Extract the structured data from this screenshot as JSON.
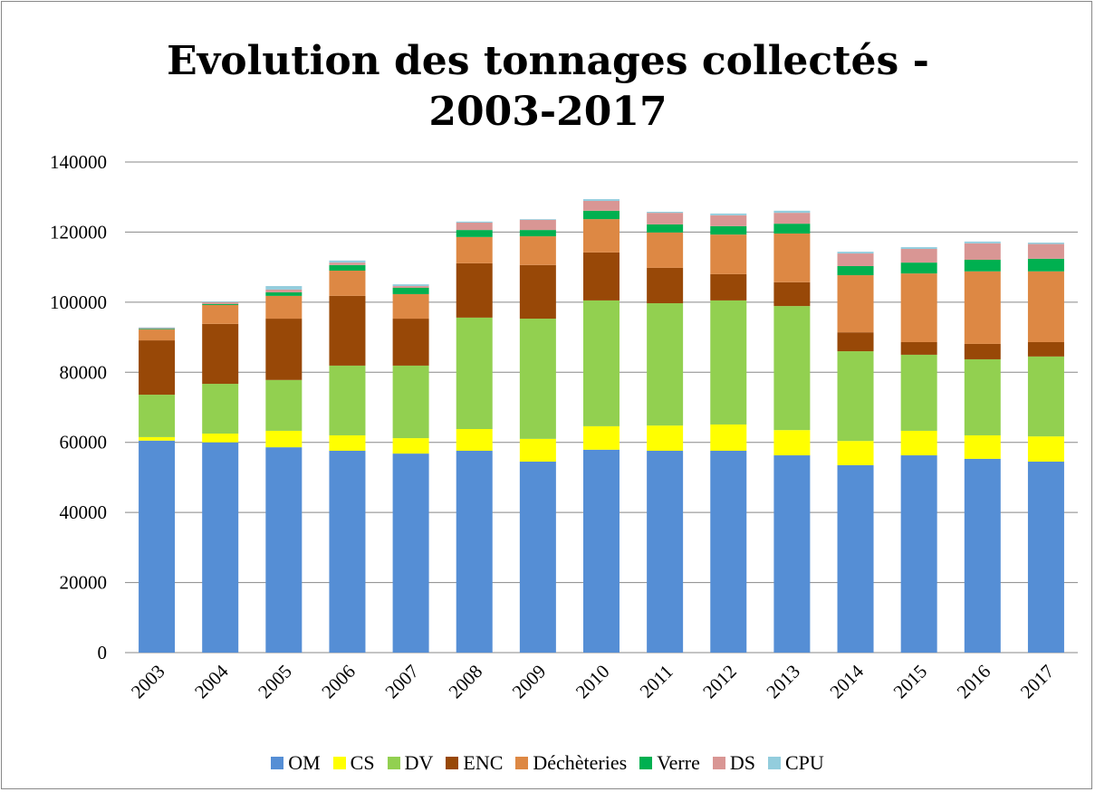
{
  "chart_data": {
    "type": "stacked_bar",
    "title": "Evolution des tonnages collectés - 2003-2017",
    "categories": [
      "2003",
      "2004",
      "2005",
      "2006",
      "2007",
      "2008",
      "2009",
      "2010",
      "2011",
      "2012",
      "2013",
      "2014",
      "2015",
      "2016",
      "2017"
    ],
    "series": [
      {
        "name": "OM",
        "color": "#558ed5",
        "values": [
          60500,
          60000,
          58600,
          57600,
          56800,
          57600,
          54500,
          57900,
          57600,
          57600,
          56300,
          53500,
          56300,
          55300,
          54500
        ]
      },
      {
        "name": "CS",
        "color": "#ffff00",
        "values": [
          1000,
          2500,
          4700,
          4400,
          4400,
          6200,
          6500,
          6700,
          7200,
          7500,
          7200,
          6900,
          7000,
          6700,
          7200
        ]
      },
      {
        "name": "DV",
        "color": "#92d050",
        "values": [
          12100,
          14200,
          14500,
          19900,
          20700,
          31800,
          34300,
          35900,
          34900,
          35400,
          35400,
          25600,
          21700,
          21700,
          22800
        ]
      },
      {
        "name": "ENC",
        "color": "#984807",
        "values": [
          15500,
          17100,
          17500,
          19900,
          13400,
          15500,
          15300,
          13700,
          10100,
          7500,
          6800,
          5400,
          3600,
          4400,
          4100
        ]
      },
      {
        "name": "Déchèteries",
        "color": "#dd8844",
        "values": [
          3100,
          5400,
          6500,
          7200,
          7000,
          7500,
          8200,
          9500,
          10100,
          11300,
          13900,
          16300,
          19600,
          20700,
          20200
        ]
      },
      {
        "name": "Verre",
        "color": "#00b050",
        "values": [
          200,
          300,
          1000,
          1600,
          1800,
          2000,
          1800,
          2400,
          2300,
          2400,
          2800,
          2600,
          3100,
          3300,
          3600
        ]
      },
      {
        "name": "DS",
        "color": "#d99694",
        "values": [
          200,
          500,
          800,
          700,
          500,
          2100,
          2900,
          2800,
          3300,
          3100,
          3100,
          3600,
          3900,
          4700,
          4200
        ]
      },
      {
        "name": "CPU",
        "color": "#93cddd",
        "values": [
          200,
          200,
          1000,
          600,
          500,
          300,
          200,
          500,
          300,
          500,
          600,
          500,
          500,
          500,
          400
        ]
      }
    ],
    "ylim": [
      0,
      140000
    ],
    "yticks": [
      0,
      20000,
      40000,
      60000,
      80000,
      100000,
      120000,
      140000
    ],
    "grid": true
  }
}
